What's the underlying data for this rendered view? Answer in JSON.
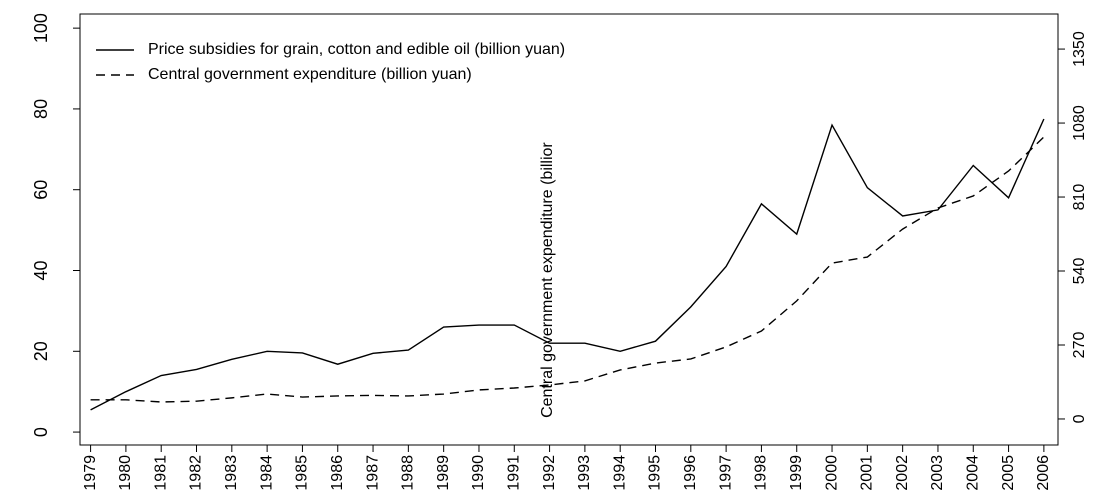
{
  "chart_data": {
    "type": "line",
    "x": [
      1979,
      1980,
      1981,
      1982,
      1983,
      1984,
      1985,
      1986,
      1987,
      1988,
      1989,
      1990,
      1991,
      1992,
      1993,
      1994,
      1995,
      1996,
      1997,
      1998,
      1999,
      2000,
      2001,
      2002,
      2003,
      2004,
      2005,
      2006
    ],
    "xlim": [
      1978.7,
      2006.4
    ],
    "xticks": [
      1979,
      1980,
      1981,
      1982,
      1983,
      1984,
      1985,
      1986,
      1987,
      1988,
      1989,
      1990,
      1991,
      1992,
      1993,
      1994,
      1995,
      1996,
      1997,
      1998,
      1999,
      2000,
      2001,
      2002,
      2003,
      2004,
      2005,
      2006
    ],
    "ylim": [
      -3.2,
      103.5
    ],
    "yticks": [
      0,
      20,
      40,
      60,
      80,
      100
    ],
    "y2lim": [
      -95,
      1478
    ],
    "y2ticks": [
      0,
      270,
      540,
      810,
      1080,
      1350
    ],
    "legend": "top-left",
    "series": [
      {
        "name": "Price subsidies for grain, cotton and edible oil (billion yuan)",
        "color": "#000000",
        "dash": "solid",
        "values": [
          5.5,
          10,
          14,
          15.5,
          18,
          20,
          19.6,
          16.8,
          19.5,
          20.3,
          26,
          26.5,
          26.5,
          22,
          22,
          20,
          22.5,
          31,
          41,
          56.5,
          49,
          76,
          60.5,
          53.5,
          55,
          66,
          58,
          77.5
        ]
      },
      {
        "name": "Central government expenditure (billion yuan)",
        "color": "#000000",
        "dash": "dashed",
        "axis": "y2",
        "values": [
          70,
          70,
          62,
          65,
          77,
          91,
          80,
          84,
          86,
          84,
          91,
          106,
          113,
          124,
          139,
          179,
          204,
          219,
          263,
          321,
          431,
          569,
          591,
          693,
          770,
          814,
          905,
          1029
        ]
      }
    ],
    "annotations": [
      "Central government expenditure (billior"
    ]
  }
}
